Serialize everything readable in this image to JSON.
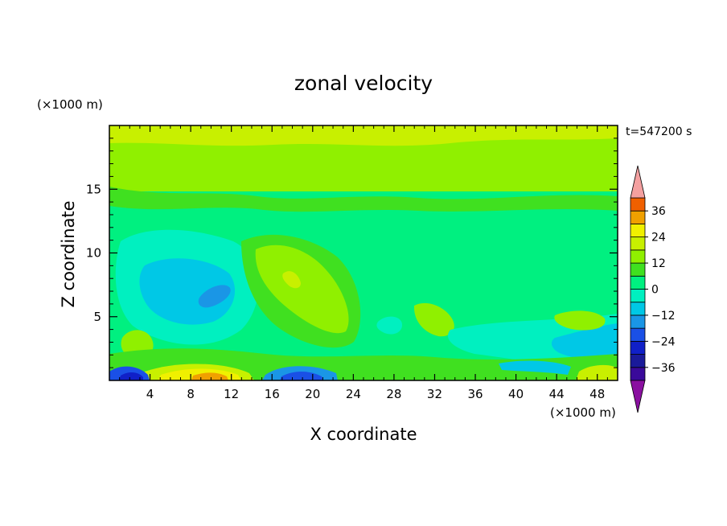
{
  "chart_data": {
    "type": "heatmap",
    "title": "zonal velocity",
    "time_label": "t=547200 s",
    "xlabel": "X coordinate",
    "ylabel": "Z coordinate",
    "x_unit": "(×1000 m)",
    "z_unit": "(×1000 m)",
    "xlim": [
      0,
      50
    ],
    "ylim": [
      0,
      20
    ],
    "x_ticks": [
      4,
      8,
      12,
      16,
      20,
      24,
      28,
      32,
      36,
      40,
      44,
      48
    ],
    "y_ticks": [
      5,
      10,
      15
    ],
    "colorbar": {
      "tick_labels": [
        "36",
        "24",
        "12",
        "0",
        "−12",
        "−24",
        "−36"
      ],
      "tick_values": [
        36,
        24,
        12,
        0,
        -12,
        -24,
        -36
      ],
      "levels": [
        -42,
        -36,
        -30,
        -24,
        -18,
        -12,
        -6,
        0,
        6,
        12,
        18,
        24,
        30,
        36,
        42
      ],
      "colors": [
        "#3a0a9a",
        "#1a1a9a",
        "#1020c8",
        "#1a50e6",
        "#1a96e6",
        "#00c8e6",
        "#00f0c0",
        "#00f080",
        "#40e020",
        "#90f000",
        "#c8f000",
        "#f0f000",
        "#f0a000",
        "#f06000",
        "#e62020"
      ],
      "over_color": "#f4a0a0",
      "under_color": "#8a10a0"
    },
    "field_description_values": {
      "background": 0,
      "features": [
        {
          "x": 10,
          "z": 7,
          "u": -16
        },
        {
          "x": 18,
          "z": 8,
          "u": 8
        },
        {
          "x": 10,
          "z": 0.5,
          "u": 18
        },
        {
          "x": 2,
          "z": 0.5,
          "u": -24
        },
        {
          "x": 19,
          "z": 0.5,
          "u": -24
        },
        {
          "x": 31,
          "z": 4.5,
          "u": 8
        },
        {
          "x": 47,
          "z": 2.5,
          "u": -12
        },
        {
          "x": 25,
          "z": 18,
          "u": 10
        }
      ]
    }
  }
}
